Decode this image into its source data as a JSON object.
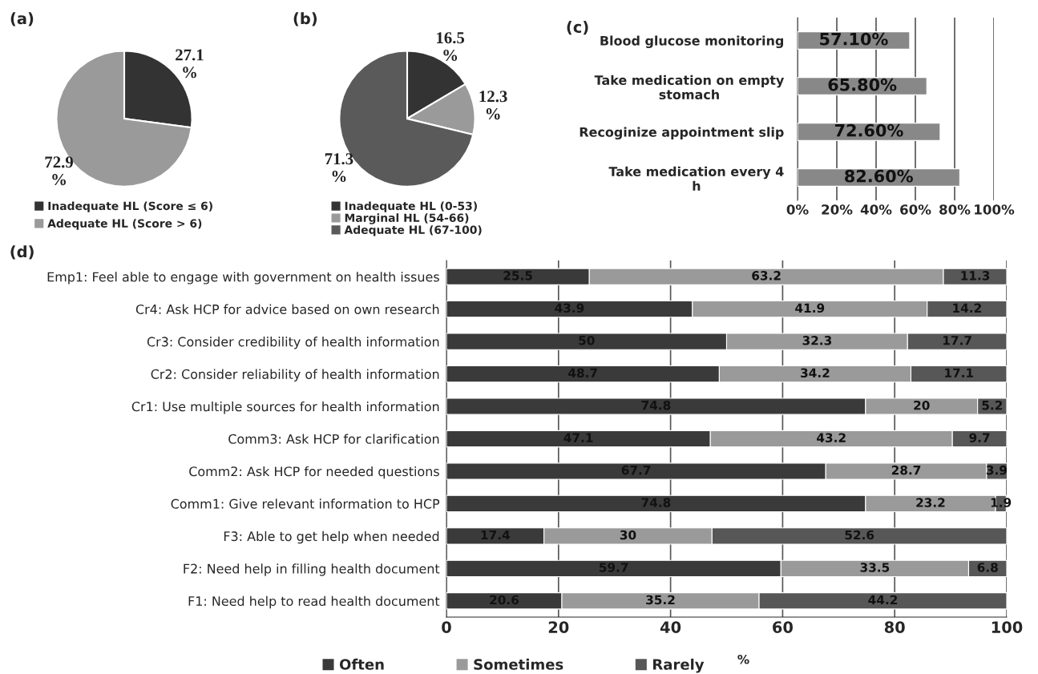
{
  "chart_data": [
    {
      "type": "pie",
      "title": "(a)",
      "categories": [
        "Inadequate HL (Score ≤ 6)",
        "Adequate HL (Score > 6)"
      ],
      "values": [
        27.1,
        72.9
      ],
      "colors": [
        "#333333",
        "#9a9a9a"
      ],
      "value_labels": [
        "27.1\n%",
        "72.9\n%"
      ],
      "legend": "bottom"
    },
    {
      "type": "pie",
      "title": "(b)",
      "categories": [
        "Inadequate HL (0-53)",
        "Marginal HL (54-66)",
        "Adequate HL (67-100)"
      ],
      "values": [
        16.5,
        12.3,
        71.3
      ],
      "colors": [
        "#333333",
        "#9a9a9a",
        "#5a5a5a"
      ],
      "value_labels": [
        "16.5\n%",
        "12.3\n%",
        "71.3\n%"
      ],
      "legend": "bottom"
    },
    {
      "type": "bar",
      "title": "(c)",
      "orientation": "horizontal",
      "categories": [
        "Blood glucose monitoring",
        "Take medication on empty\nstomach",
        "Recoginize appointment slip",
        "Take medication every 4\nh"
      ],
      "values": [
        57.1,
        65.8,
        72.6,
        82.6
      ],
      "color": "#888888",
      "value_labels": [
        "57.10%",
        "65.80%",
        "72.60%",
        "82.60%"
      ],
      "xlim": [
        0,
        100
      ],
      "xticks": [
        {
          "value": 0,
          "label": "0%"
        },
        {
          "value": 20,
          "label": "20%"
        },
        {
          "value": 40,
          "label": "40%"
        },
        {
          "value": 60,
          "label": "60%"
        },
        {
          "value": 80,
          "label": "80%"
        },
        {
          "value": 100,
          "label": "100%"
        }
      ],
      "grid": "x"
    },
    {
      "type": "bar",
      "title": "(d)",
      "orientation": "horizontal",
      "stacked": true,
      "xlabel": "%",
      "categories": [
        "Emp1: Feel able to engage with government on health issues",
        "Cr4: Ask HCP for advice based on own research",
        "Cr3: Consider credibility of health information",
        "Cr2: Consider reliability of health information",
        "Cr1: Use multiple sources for health information",
        "Comm3: Ask HCP for clarification",
        "Comm2: Ask HCP for needed questions",
        "Comm1: Give relevant information to HCP",
        "F3: Able to get help when needed",
        "F2: Need help in filling health document",
        "F1: Need help to read health document"
      ],
      "series": [
        {
          "name": "Often",
          "color": "#3a3a3a",
          "values": [
            25.5,
            43.9,
            50,
            48.7,
            74.8,
            47.1,
            67.7,
            74.8,
            17.4,
            59.7,
            20.6
          ]
        },
        {
          "name": "Sometimes",
          "color": "#9a9a9a",
          "values": [
            63.2,
            41.9,
            32.3,
            34.2,
            20,
            43.2,
            28.7,
            23.2,
            30,
            33.5,
            35.2
          ]
        },
        {
          "name": "Rarely",
          "color": "#575757",
          "values": [
            11.3,
            14.2,
            17.7,
            17.1,
            5.2,
            9.7,
            3.9,
            1.9,
            52.6,
            6.8,
            44.2
          ]
        }
      ],
      "data_labels": true,
      "xlim": [
        0,
        100
      ],
      "xticks": [
        0,
        20,
        40,
        60,
        80,
        100
      ],
      "grid": "x",
      "legend": "bottom"
    }
  ]
}
